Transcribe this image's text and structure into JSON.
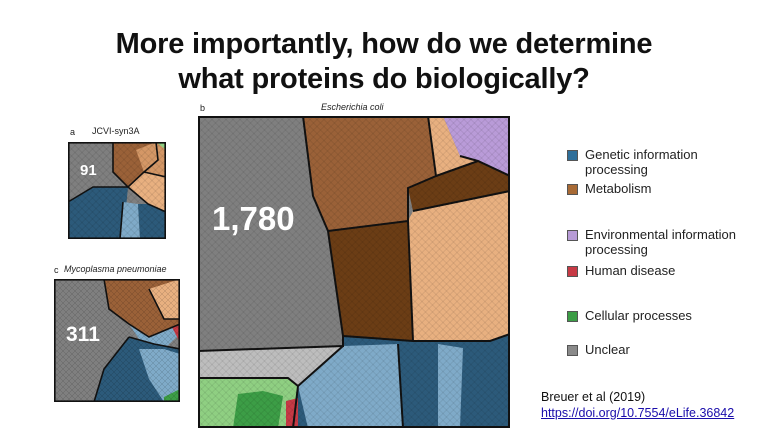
{
  "title": {
    "line1": "More importantly, how do we determine",
    "line2": "what proteins do biologically?"
  },
  "panels": {
    "a": {
      "letter": "a",
      "organism": "JCVI-syn3A",
      "count": "91"
    },
    "b": {
      "letter": "b",
      "organism": "Escherichia coli",
      "count": "1,780"
    },
    "c": {
      "letter": "c",
      "organism": "Mycoplasma pneumoniae",
      "count": "311"
    }
  },
  "legend": [
    {
      "label": "Genetic information\nprocessing",
      "color": "#2f6f9a"
    },
    {
      "label": "Metabolism",
      "color": "#a86a35"
    },
    {
      "label": "Environmental information\nprocessing",
      "color": "#b79bd6"
    },
    {
      "label": "Human disease",
      "color": "#c73a45"
    },
    {
      "label": "Cellular processes",
      "color": "#3c9d46"
    },
    {
      "label": "Unclear",
      "color": "#8a8a8a"
    }
  ],
  "citation": {
    "text": "Breuer et al (2019)",
    "link": "https://doi.org/10.7554/eLife.36842"
  },
  "colors": {
    "unclear": "#7f7f7f",
    "unclear_light": "#bdbdbd",
    "genetic": "#2c5a7a",
    "genetic_light": "#7faac8",
    "metabolism": "#9a6138",
    "metabolism_dark": "#6b3d15",
    "metabolism_light": "#e8b080",
    "environmental": "#b99bd8",
    "human_disease": "#c73a45",
    "cellular": "#3c9d46",
    "cellular_light": "#8fcf82",
    "outline": "#111111"
  }
}
